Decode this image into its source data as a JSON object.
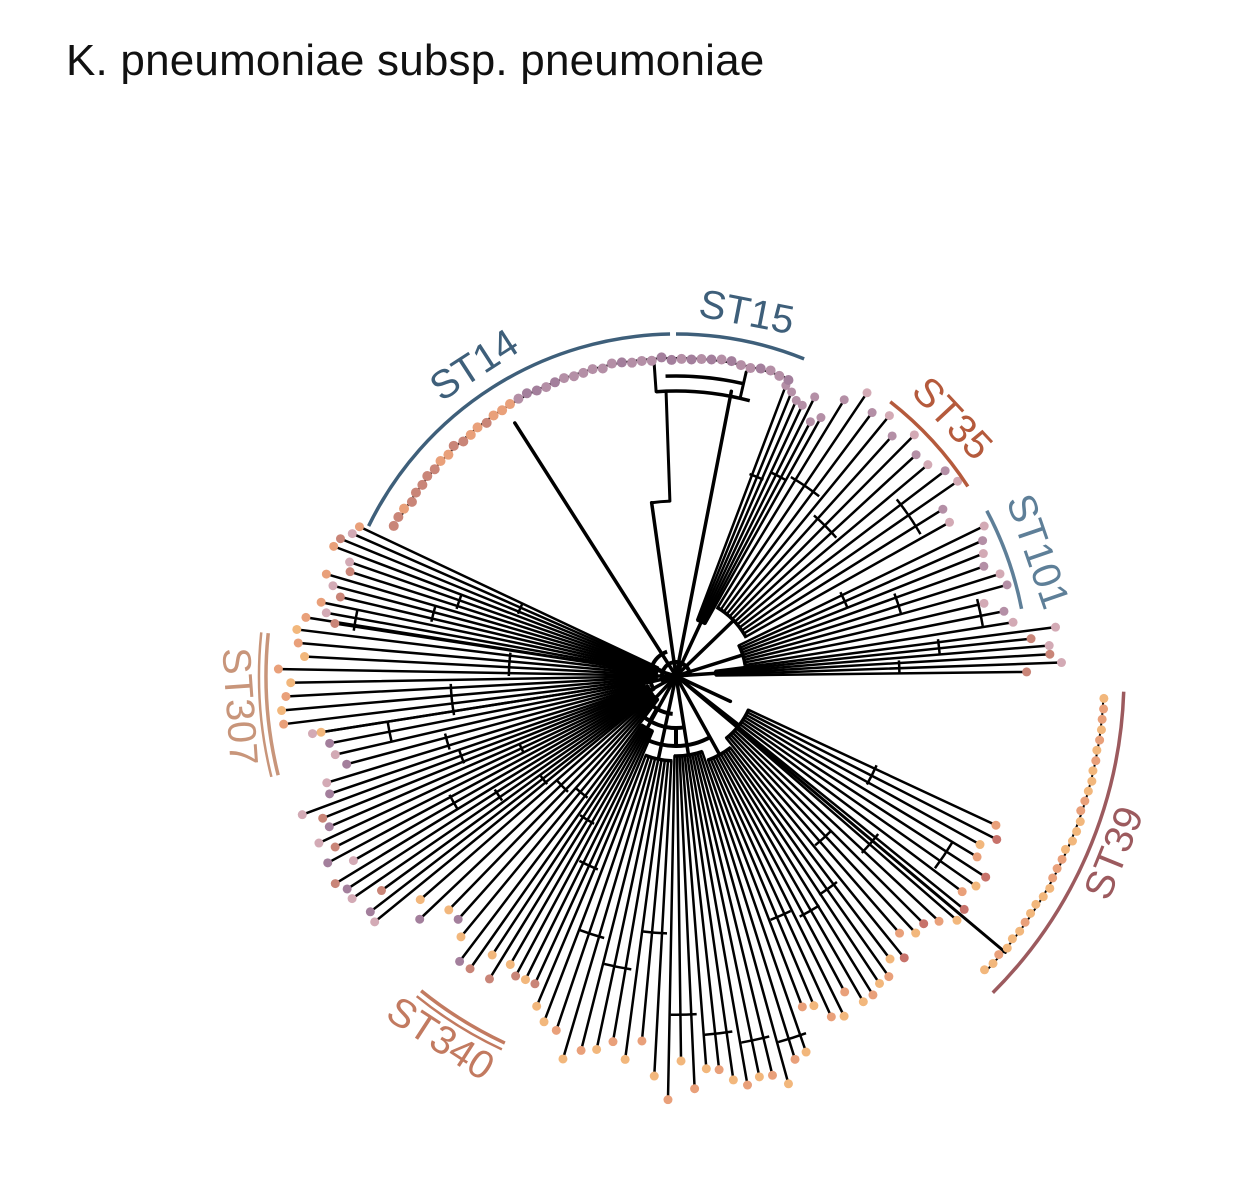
{
  "title": "K. pneumoniae subsp. pneumoniae",
  "colors": {
    "branch": "#000000",
    "st14": "#3e5f7a",
    "st15": "#3e5f7a",
    "st101": "#5e7f98",
    "st35": "#b55a3c",
    "st39": "#9c5a5e",
    "st307": "#c8957a",
    "st340": "#c27a60",
    "tip_palette": [
      "#b48fa6",
      "#c98578",
      "#d3aab5",
      "#f2b77c",
      "#e9a07a",
      "#c7726a",
      "#a37f9c"
    ]
  },
  "clades": [
    {
      "id": "st14",
      "label": "ST14",
      "start_deg": 206,
      "end_deg": 269
    },
    {
      "id": "st15",
      "label": "ST15",
      "start_deg": 270,
      "end_deg": 292
    },
    {
      "id": "st35",
      "label": "ST35",
      "start_deg": 308,
      "end_deg": 327
    },
    {
      "id": "st101",
      "label": "ST101",
      "start_deg": 332,
      "end_deg": 349
    },
    {
      "id": "st39",
      "label": "ST39",
      "start_deg": 2,
      "end_deg": 45
    },
    {
      "id": "st340",
      "label": "ST340",
      "start_deg": 115,
      "end_deg": 129
    },
    {
      "id": "st307",
      "label": "ST307",
      "start_deg": 166,
      "end_deg": 186
    }
  ]
}
